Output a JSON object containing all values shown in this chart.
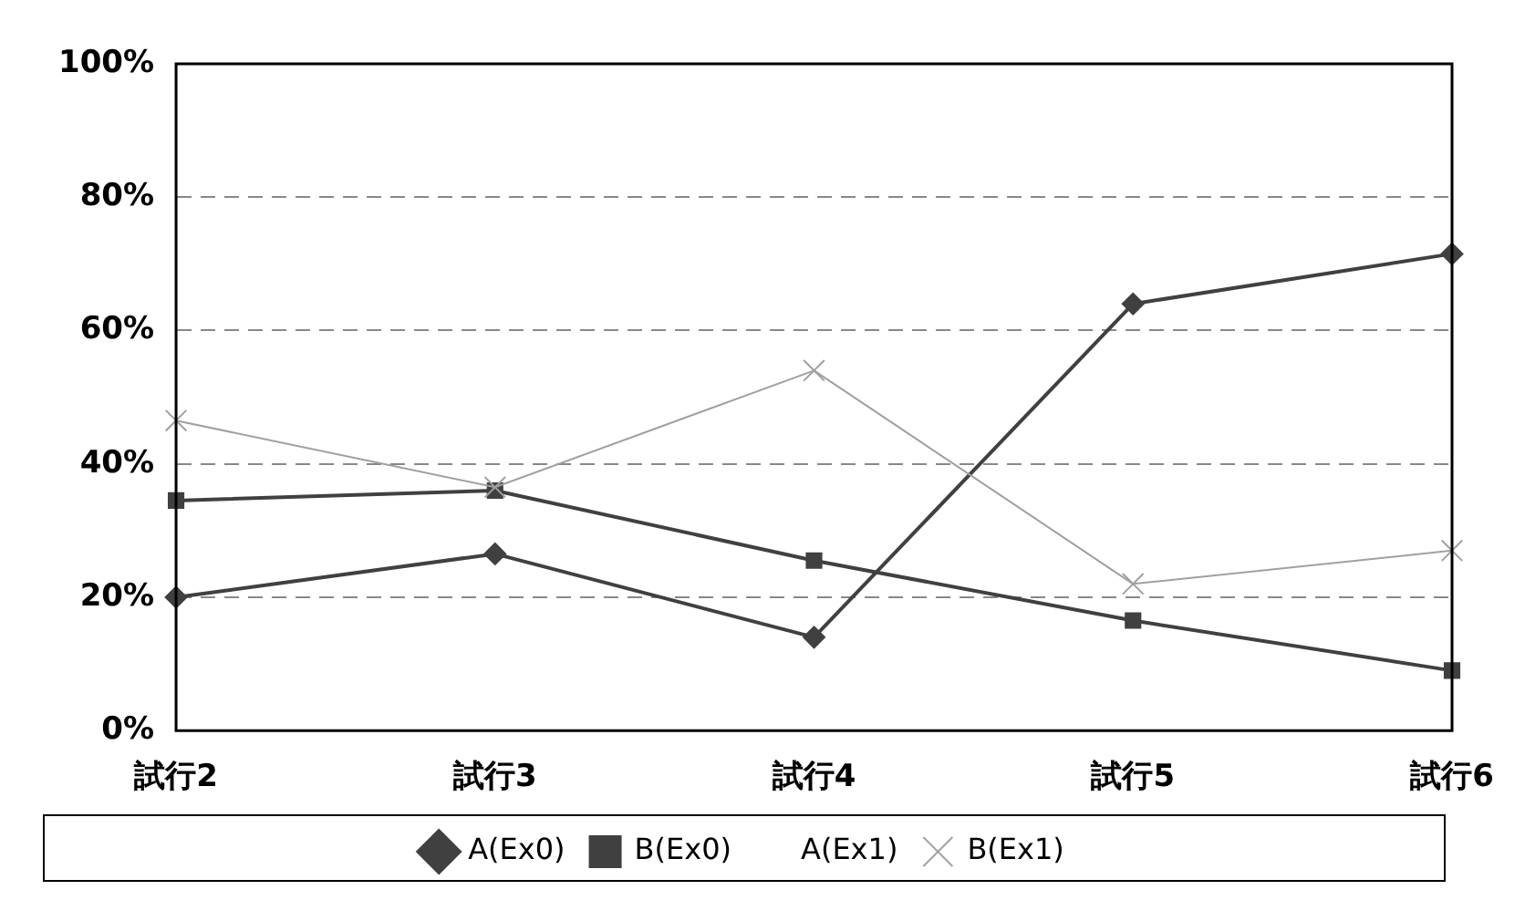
{
  "chart_data": {
    "type": "line",
    "categories": [
      "試行2",
      "試行3",
      "試行4",
      "試行5",
      "試行6"
    ],
    "series": [
      {
        "name": "A(Ex0)",
        "color": "#404040",
        "marker": "diamond",
        "values": [
          20,
          26.5,
          14,
          64,
          71.5
        ]
      },
      {
        "name": "B(Ex0)",
        "color": "#404040",
        "marker": "square",
        "values": [
          34.5,
          36,
          25.5,
          16.5,
          9
        ]
      },
      {
        "name": "A(Ex1)",
        "marker": "none",
        "values": [
          null,
          null,
          null,
          null,
          null
        ]
      },
      {
        "name": "B(Ex1)",
        "color": "#a0a0a0",
        "marker": "cross",
        "values": [
          46.5,
          36.5,
          54,
          22,
          27
        ]
      }
    ],
    "ylim": [
      0,
      100
    ],
    "yticks": [
      {
        "value": 0,
        "label": "0%"
      },
      {
        "value": 20,
        "label": "20%"
      },
      {
        "value": 40,
        "label": "40%"
      },
      {
        "value": 60,
        "label": "60%"
      },
      {
        "value": 80,
        "label": "80%"
      },
      {
        "value": 100,
        "label": "100%"
      }
    ],
    "grid": "y",
    "legend": "bottom",
    "line_style": "solid"
  }
}
